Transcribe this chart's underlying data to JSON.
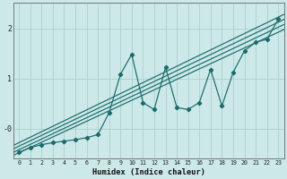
{
  "xlabel": "Humidex (Indice chaleur)",
  "bg_color": "#cce8e8",
  "line_color": "#1a6b6b",
  "grid_color": "#aacece",
  "xlim": [
    -0.5,
    23.5
  ],
  "ylim": [
    -0.6,
    2.5
  ],
  "xticks": [
    0,
    1,
    2,
    3,
    4,
    5,
    6,
    7,
    8,
    9,
    10,
    11,
    12,
    13,
    14,
    15,
    16,
    17,
    18,
    19,
    20,
    21,
    22,
    23
  ],
  "main_y": [
    -0.47,
    -0.38,
    -0.32,
    -0.28,
    -0.25,
    -0.22,
    -0.18,
    -0.12,
    0.32,
    1.08,
    1.48,
    0.52,
    0.38,
    1.22,
    0.42,
    0.38,
    0.52,
    1.18,
    0.45,
    1.12,
    1.55,
    1.72,
    1.78,
    2.18
  ],
  "reg_lines": [
    [
      -0.48,
      1.92
    ],
    [
      -0.42,
      2.02
    ],
    [
      -0.35,
      2.12
    ],
    [
      -0.28,
      2.22
    ]
  ]
}
